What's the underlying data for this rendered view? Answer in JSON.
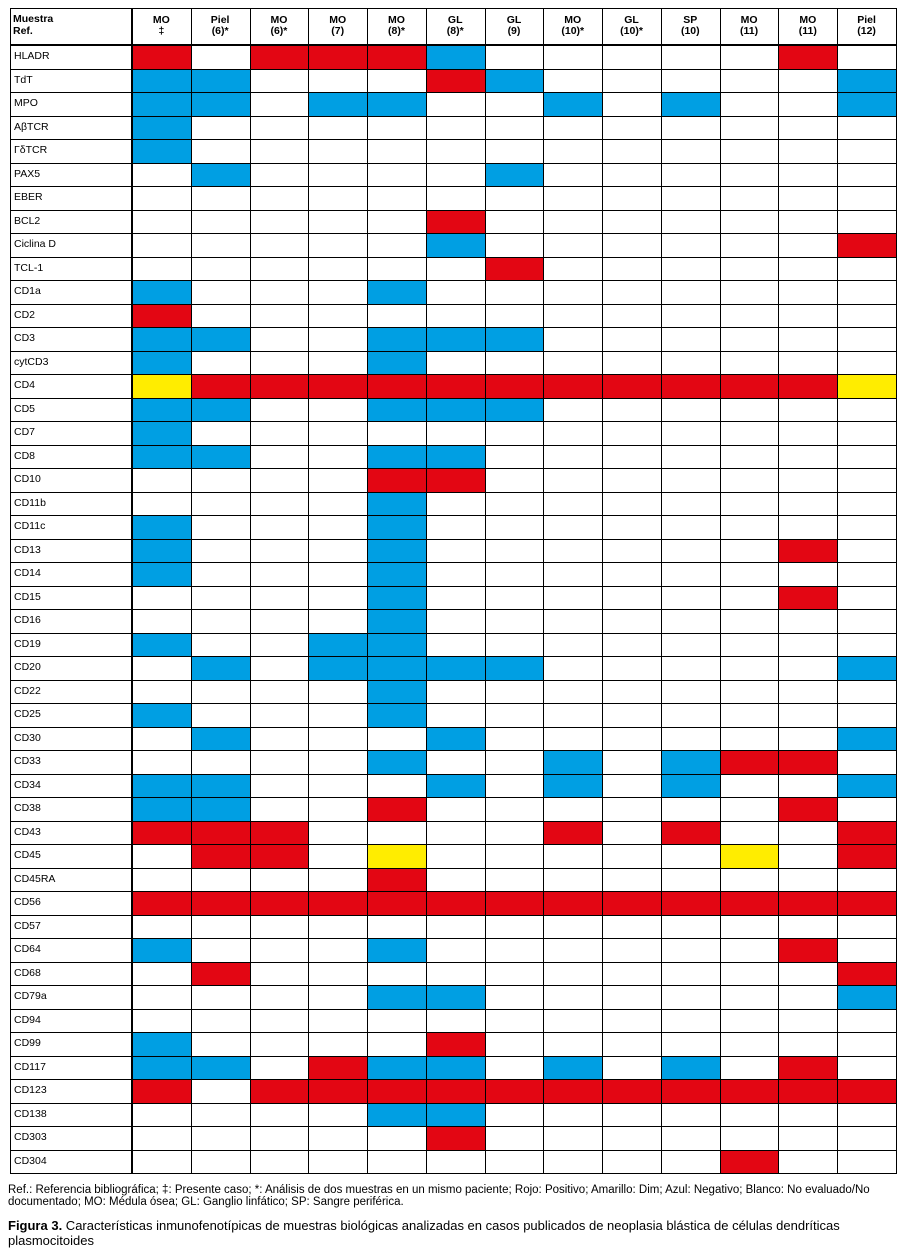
{
  "table": {
    "corner_label_line1": "Muestra",
    "corner_label_line2": "Ref.",
    "columns": [
      {
        "l1": "MO",
        "l2": "‡"
      },
      {
        "l1": "Piel",
        "l2": "(6)*"
      },
      {
        "l1": "MO",
        "l2": "(6)*"
      },
      {
        "l1": "MO",
        "l2": "(7)"
      },
      {
        "l1": "MO",
        "l2": "(8)*"
      },
      {
        "l1": "GL",
        "l2": "(8)*"
      },
      {
        "l1": "GL",
        "l2": "(9)"
      },
      {
        "l1": "MO",
        "l2": "(10)*"
      },
      {
        "l1": "GL",
        "l2": "(10)*"
      },
      {
        "l1": "SP",
        "l2": "(10)"
      },
      {
        "l1": "MO",
        "l2": "(11)"
      },
      {
        "l1": "MO",
        "l2": "(11)"
      },
      {
        "l1": "Piel",
        "l2": "(12)"
      }
    ],
    "legend_colors": {
      "R": "#e30613",
      "B": "#009fe3",
      "Y": "#ffed00",
      "W": "#ffffff"
    },
    "legend_meaning": {
      "R": "Positivo",
      "Y": "Dim",
      "B": "Negativo",
      "W": "No evaluado/No documentado"
    },
    "rows": [
      {
        "marker": "HLADR",
        "cells": "RWRRRBWWWWWRW"
      },
      {
        "marker": "TdT",
        "cells": "BBWWWRBWWWWWB"
      },
      {
        "marker": "MPO",
        "cells": "BBWBBWWBWBWWB"
      },
      {
        "marker": "AβTCR",
        "cells": "BWWWWWWWWWWWW"
      },
      {
        "marker": "ΓδTCR",
        "cells": "BWWWWWWWWWWWW"
      },
      {
        "marker": "PAX5",
        "cells": "WBWWWWBWWWWWW"
      },
      {
        "marker": "EBER",
        "cells": "WWWWWWWWWWWWW"
      },
      {
        "marker": "BCL2",
        "cells": "WWWWWRWWWWWWW"
      },
      {
        "marker": "Ciclina D",
        "cells": "WWWWWBWWWWWWR"
      },
      {
        "marker": "TCL-1",
        "cells": "WWWWWWRWWWWWW"
      },
      {
        "marker": "CD1a",
        "cells": "BWWWBWWWWWWWW"
      },
      {
        "marker": "CD2",
        "cells": "RWWWWWWWWWWWW"
      },
      {
        "marker": "CD3",
        "cells": "BBWWBBBWWWWWW"
      },
      {
        "marker": "cytCD3",
        "cells": "BWWWBWWWWWWWW"
      },
      {
        "marker": "CD4",
        "cells": "YRRRRRRRRRRRY"
      },
      {
        "marker": "CD5",
        "cells": "BBWWBBBWWWWWW"
      },
      {
        "marker": "CD7",
        "cells": "BWWWWWWWWWWWW"
      },
      {
        "marker": "CD8",
        "cells": "BBWWBBWWWWWWW"
      },
      {
        "marker": "CD10",
        "cells": "WWWWRRWWWWWWW"
      },
      {
        "marker": "CD11b",
        "cells": "WWWWBWWWWWWWW"
      },
      {
        "marker": "CD11c",
        "cells": "BWWWBWWWWWWWW"
      },
      {
        "marker": "CD13",
        "cells": "BWWWBWWWWWWRW"
      },
      {
        "marker": "CD14",
        "cells": "BWWWBWWWWWWWW"
      },
      {
        "marker": "CD15",
        "cells": "WWWWBWWWWWWRW"
      },
      {
        "marker": "CD16",
        "cells": "WWWWBWWWWWWWW"
      },
      {
        "marker": "CD19",
        "cells": "BWWBBWWWWWWWW"
      },
      {
        "marker": "CD20",
        "cells": "WBWBBBBWWWWWB"
      },
      {
        "marker": "CD22",
        "cells": "WWWWBWWWWWWWW"
      },
      {
        "marker": "CD25",
        "cells": "BWWWBWWWWWWWW"
      },
      {
        "marker": "CD30",
        "cells": "WBWWWBWWWWWWB"
      },
      {
        "marker": "CD33",
        "cells": "WWWWBWWBWBRRW"
      },
      {
        "marker": "CD34",
        "cells": "BBWWWBWBWBWWB"
      },
      {
        "marker": "CD38",
        "cells": "BBWWRWWWWWWRW"
      },
      {
        "marker": "CD43",
        "cells": "RRRWWWWRWRWWR"
      },
      {
        "marker": "CD45",
        "cells": "WRRWYWWWWWYWR"
      },
      {
        "marker": "CD45RA",
        "cells": "WWWWRWWWWWWWW"
      },
      {
        "marker": "CD56",
        "cells": "RRRRRRRRRRRRR"
      },
      {
        "marker": "CD57",
        "cells": "WWWWWWWWWWWWW"
      },
      {
        "marker": "CD64",
        "cells": "BWWWBWWWWWWRW"
      },
      {
        "marker": "CD68",
        "cells": "WRWWWWWWWWWWR"
      },
      {
        "marker": "CD79a",
        "cells": "WWWWBBWWWWWWB"
      },
      {
        "marker": "CD94",
        "cells": "WWWWWWWWWWWWW"
      },
      {
        "marker": "CD99",
        "cells": "BWWWWRWWWWWWW"
      },
      {
        "marker": "CD117",
        "cells": "BBWRBBWBWBWRW"
      },
      {
        "marker": "CD123",
        "cells": "RWRRRRRRRRRRR"
      },
      {
        "marker": "CD138",
        "cells": "WWWWBBWWWWWWW"
      },
      {
        "marker": "CD303",
        "cells": "WWWWWRWWWWWWW"
      },
      {
        "marker": "CD304",
        "cells": "WWWWWWWWWWRWW"
      }
    ]
  },
  "footnote": "Ref.: Referencia bibliográfica; ‡: Presente caso; *: Análisis de dos muestras en un mismo paciente; Rojo: Positivo; Amarillo: Dim; Azul: Negativo; Blanco: No evaluado/No documentado; MO: Médula ósea; GL: Ganglio linfático; SP: Sangre periférica.",
  "caption": {
    "label": "Figura 3.",
    "text": " Características inmunofenotípicas de muestras biológicas analizadas en casos publicados de neoplasia blástica de células dendríticas plasmocitoides"
  }
}
